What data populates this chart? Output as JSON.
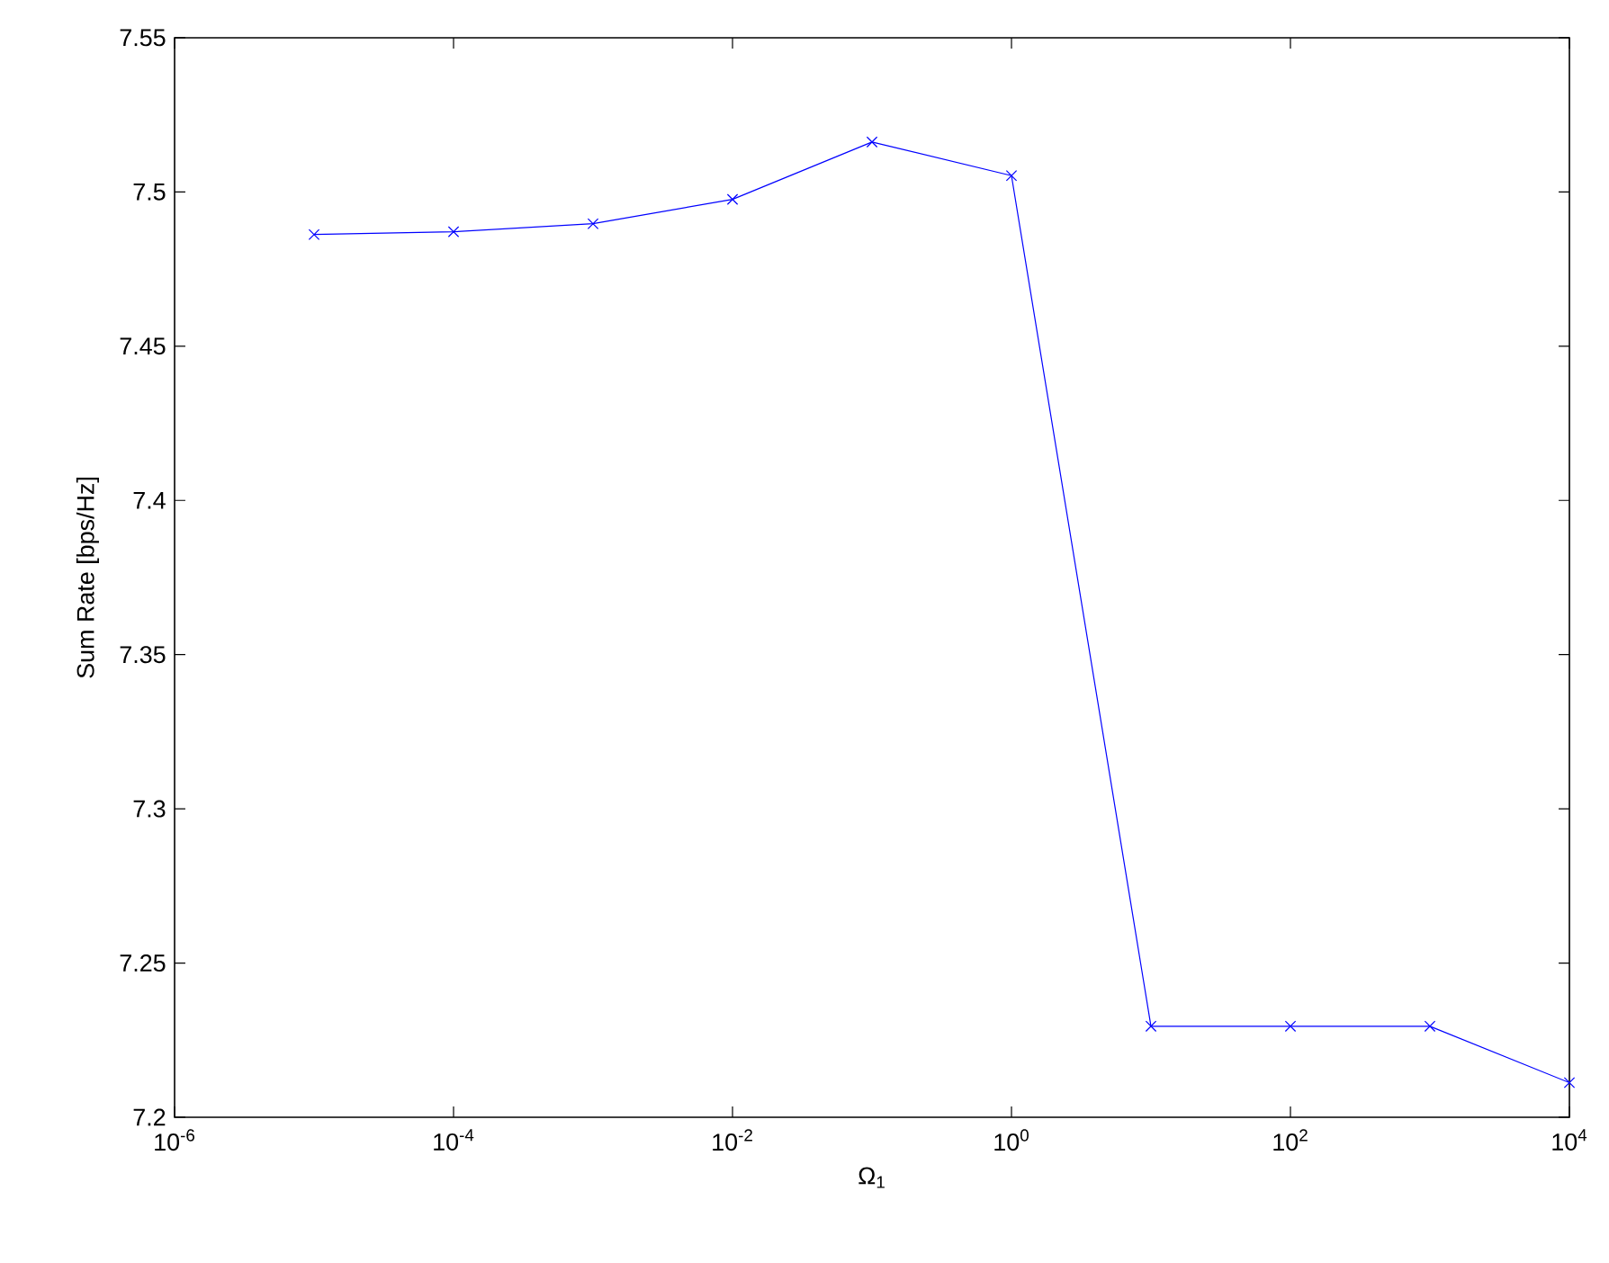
{
  "chart_data": {
    "type": "line",
    "xlabel": "Ω$_{1}$",
    "ylabel": "Sum Rate [bps/Hz]",
    "log": "x",
    "x": [
      1e-05,
      0.0001,
      0.001,
      0.01,
      0.1,
      1,
      10,
      100,
      1000,
      10000
    ],
    "series": [
      {
        "color": "#0000ff",
        "values": [
          7.4862,
          7.4871,
          7.4897,
          7.4976,
          7.5162,
          7.5053,
          7.2295,
          7.2295,
          7.2295,
          7.2112
        ]
      }
    ],
    "xlim": [
      1e-06,
      10000.0
    ],
    "ylim": [
      7.2,
      7.55
    ],
    "xticks": [
      {
        "value": 1e-06,
        "label": "10$^{-6}$"
      },
      {
        "value": 0.0001,
        "label": "10$^{-4}$"
      },
      {
        "value": 0.01,
        "label": "10$^{-2}$"
      },
      {
        "value": 1,
        "label": "10$^{0}$"
      },
      {
        "value": 100,
        "label": "10$^{2}$"
      },
      {
        "value": 10000,
        "label": "10$^{4}$"
      }
    ],
    "yticks": [
      7.2,
      7.25,
      7.3,
      7.35,
      7.4,
      7.45,
      7.5,
      7.55
    ],
    "grid": false,
    "marker": "cross",
    "line_style": "solid"
  }
}
